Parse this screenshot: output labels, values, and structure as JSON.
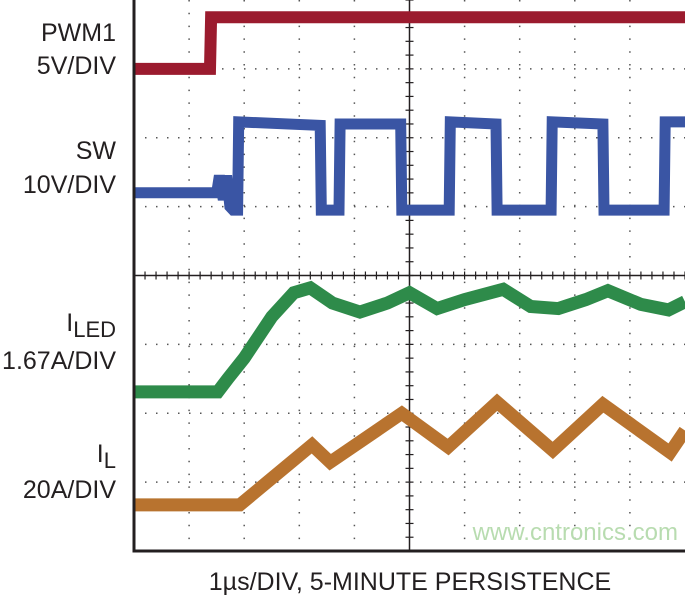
{
  "chart_data": {
    "type": "line",
    "title": "",
    "xlabel": "1µs/DIV, 5-MINUTE PERSISTENCE",
    "ylabel": "",
    "xlim": [
      0,
      10
    ],
    "ylim": [
      0,
      8
    ],
    "grid": true,
    "divisions": {
      "x": 10,
      "y": 8
    },
    "watermark": "www.cntronics.com",
    "series": [
      {
        "name": "PWM1",
        "scale": "5V/DIV",
        "color": "#9b1b2e",
        "points": [
          [
            0,
            7.0
          ],
          [
            1.38,
            7.0
          ],
          [
            1.4,
            7.75
          ],
          [
            10,
            7.75
          ]
        ]
      },
      {
        "name": "SW",
        "scale": "10V/DIV",
        "color": "#3a55a4",
        "points": [
          [
            0,
            5.2
          ],
          [
            1.5,
            5.2
          ],
          [
            1.55,
            5.45
          ],
          [
            1.62,
            5.1
          ],
          [
            1.68,
            5.45
          ],
          [
            1.74,
            5.0
          ],
          [
            1.8,
            4.95
          ],
          [
            1.88,
            4.95
          ],
          [
            1.9,
            6.23
          ],
          [
            3.38,
            6.18
          ],
          [
            3.4,
            4.95
          ],
          [
            3.72,
            4.95
          ],
          [
            3.74,
            6.2
          ],
          [
            4.84,
            6.2
          ],
          [
            4.86,
            4.95
          ],
          [
            5.72,
            4.95
          ],
          [
            5.74,
            6.23
          ],
          [
            6.57,
            6.2
          ],
          [
            6.59,
            4.95
          ],
          [
            7.57,
            4.95
          ],
          [
            7.59,
            6.23
          ],
          [
            8.51,
            6.2
          ],
          [
            8.53,
            4.95
          ],
          [
            9.62,
            4.95
          ],
          [
            9.64,
            6.23
          ],
          [
            10,
            6.23
          ]
        ]
      },
      {
        "name": "I_LED",
        "scale": "1.67A/DIV",
        "color": "#2e8b4a",
        "points": [
          [
            0,
            2.31
          ],
          [
            1.52,
            2.31
          ],
          [
            1.7,
            2.5
          ],
          [
            2.0,
            2.8
          ],
          [
            2.5,
            3.4
          ],
          [
            2.9,
            3.75
          ],
          [
            3.2,
            3.82
          ],
          [
            3.6,
            3.6
          ],
          [
            4.1,
            3.47
          ],
          [
            4.6,
            3.6
          ],
          [
            5.0,
            3.75
          ],
          [
            5.5,
            3.52
          ],
          [
            6.0,
            3.65
          ],
          [
            6.7,
            3.8
          ],
          [
            7.2,
            3.55
          ],
          [
            7.7,
            3.52
          ],
          [
            8.2,
            3.65
          ],
          [
            8.6,
            3.78
          ],
          [
            9.2,
            3.58
          ],
          [
            9.7,
            3.5
          ],
          [
            10,
            3.62
          ]
        ]
      },
      {
        "name": "I_L",
        "scale": "20A/DIV",
        "color": "#b8732f",
        "points": [
          [
            0,
            0.67
          ],
          [
            1.92,
            0.67
          ],
          [
            3.23,
            1.54
          ],
          [
            3.56,
            1.29
          ],
          [
            4.86,
            2.0
          ],
          [
            5.7,
            1.51
          ],
          [
            6.59,
            2.16
          ],
          [
            7.6,
            1.46
          ],
          [
            8.51,
            2.13
          ],
          [
            9.73,
            1.43
          ],
          [
            10,
            1.75
          ]
        ]
      }
    ]
  },
  "labels": {
    "pwm1": {
      "name": "PWM1",
      "scale": "5V/DIV"
    },
    "sw": {
      "name": "SW",
      "scale": "10V/DIV"
    },
    "iled": {
      "name": "I",
      "sub": "LED",
      "scale": "1.67A/DIV"
    },
    "il": {
      "name": "I",
      "sub": "L",
      "scale": "20A/DIV"
    }
  }
}
